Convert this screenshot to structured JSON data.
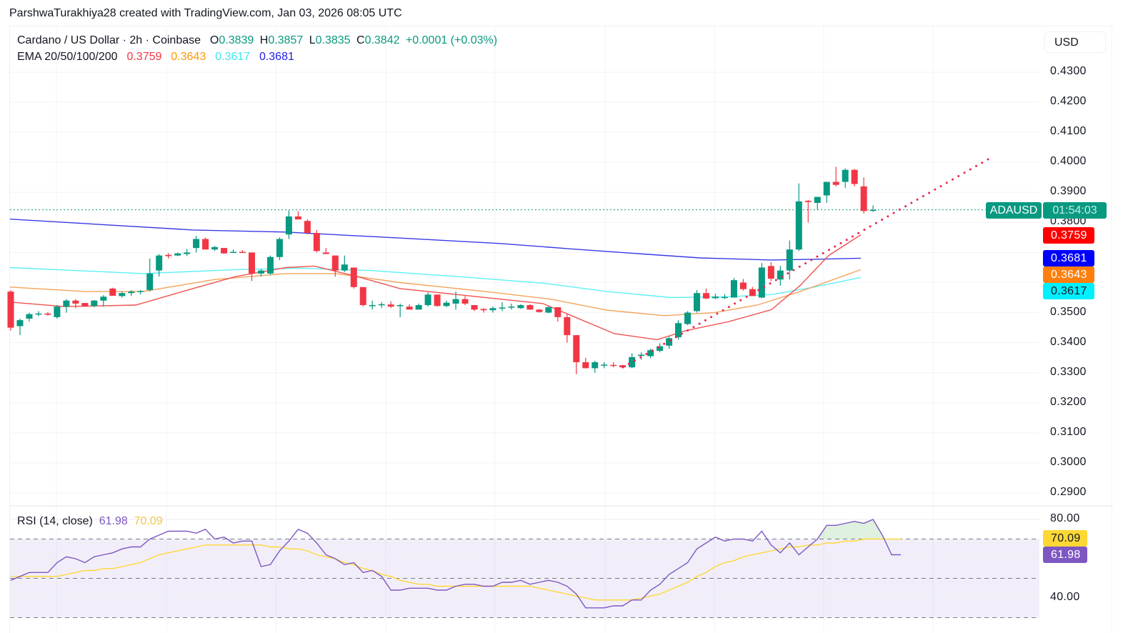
{
  "credit": "ParshwaTurakhiya28 created with TradingView.com, Jan 03, 2026 08:05 UTC",
  "header": {
    "symbol_title": "Cardano / US Dollar · 2h · Coinbase",
    "open_label": "O",
    "open": "0.3839",
    "high_label": "H",
    "high": "0.3857",
    "low_label": "L",
    "low": "0.3835",
    "close_label": "C",
    "close": "0.3842",
    "change": "+0.0001 (+0.03%)"
  },
  "ema_legend": {
    "label": "EMA 20/50/100/200",
    "ema20": "0.3759",
    "ema50": "0.3643",
    "ema100": "0.3617",
    "ema200": "0.3681"
  },
  "rsi_legend": {
    "label": "RSI (14, close)",
    "rsi": "61.98",
    "rsi_ma": "70.09"
  },
  "price_axis": {
    "currency": "USD",
    "ticks": [
      "0.4300",
      "0.4200",
      "0.4100",
      "0.4000",
      "0.3900",
      "0.3800",
      "0.3500",
      "0.3400",
      "0.3300",
      "0.3200",
      "0.3100",
      "0.3000",
      "0.2900"
    ]
  },
  "rsi_axis": {
    "ticks": [
      "80.00",
      "40.00"
    ]
  },
  "price_tags": {
    "symbol": "ADAUSD",
    "countdown": "01:54:03",
    "ema20": "0.3759",
    "ema200": "0.3681",
    "ema50": "0.3643",
    "ema100": "0.3617",
    "rsi_ma": "70.09",
    "rsi": "61.98"
  },
  "colors": {
    "up": "#089981",
    "down": "#f23645",
    "ema20": "#f23645",
    "ema50": "#ff9800",
    "ema100": "#00e5ff",
    "ema200": "#2962ff",
    "rsi": "#7e57c2",
    "rsi_ma": "#fdd835",
    "trendline": "#e8264a"
  },
  "chart_data": {
    "type": "candlestick",
    "title": "Cardano / US Dollar · 2h · Coinbase",
    "xlabel": "",
    "ylabel": "USD",
    "ylim": [
      0.285,
      0.435
    ],
    "grid": true,
    "legend_position": "top-left",
    "last_price": 0.3842,
    "ohlc_last": {
      "open": 0.3839,
      "high": 0.3857,
      "low": 0.3835,
      "close": 0.3842,
      "change": 0.0001,
      "change_pct": 0.03
    },
    "candles": [
      {
        "o": 0.357,
        "h": 0.3575,
        "l": 0.344,
        "c": 0.345
      },
      {
        "o": 0.3455,
        "h": 0.348,
        "l": 0.3425,
        "c": 0.3475
      },
      {
        "o": 0.348,
        "h": 0.35,
        "l": 0.347,
        "c": 0.3495
      },
      {
        "o": 0.3495,
        "h": 0.3505,
        "l": 0.3488,
        "c": 0.3497
      },
      {
        "o": 0.3497,
        "h": 0.3502,
        "l": 0.349,
        "c": 0.3493
      },
      {
        "o": 0.3485,
        "h": 0.3525,
        "l": 0.348,
        "c": 0.352
      },
      {
        "o": 0.352,
        "h": 0.3545,
        "l": 0.35,
        "c": 0.354
      },
      {
        "o": 0.354,
        "h": 0.3545,
        "l": 0.3515,
        "c": 0.353
      },
      {
        "o": 0.3532,
        "h": 0.3528,
        "l": 0.352,
        "c": 0.352
      },
      {
        "o": 0.3522,
        "h": 0.3542,
        "l": 0.3518,
        "c": 0.354
      },
      {
        "o": 0.354,
        "h": 0.3558,
        "l": 0.352,
        "c": 0.3553
      },
      {
        "o": 0.358,
        "h": 0.3583,
        "l": 0.3556,
        "c": 0.3556
      },
      {
        "o": 0.3555,
        "h": 0.357,
        "l": 0.355,
        "c": 0.3565
      },
      {
        "o": 0.3565,
        "h": 0.3575,
        "l": 0.3555,
        "c": 0.357
      },
      {
        "o": 0.357,
        "h": 0.3575,
        "l": 0.356,
        "c": 0.3572
      },
      {
        "o": 0.3575,
        "h": 0.368,
        "l": 0.357,
        "c": 0.363
      },
      {
        "o": 0.364,
        "h": 0.3695,
        "l": 0.362,
        "c": 0.369
      },
      {
        "o": 0.3692,
        "h": 0.3698,
        "l": 0.368,
        "c": 0.3688
      },
      {
        "o": 0.369,
        "h": 0.37,
        "l": 0.3688,
        "c": 0.3697
      },
      {
        "o": 0.3695,
        "h": 0.3712,
        "l": 0.3688,
        "c": 0.37
      },
      {
        "o": 0.3715,
        "h": 0.3755,
        "l": 0.37,
        "c": 0.3745
      },
      {
        "o": 0.3745,
        "h": 0.375,
        "l": 0.371,
        "c": 0.371
      },
      {
        "o": 0.371,
        "h": 0.3722,
        "l": 0.3705,
        "c": 0.3718
      },
      {
        "o": 0.3715,
        "h": 0.3715,
        "l": 0.3695,
        "c": 0.3697
      },
      {
        "o": 0.3702,
        "h": 0.371,
        "l": 0.37,
        "c": 0.3702
      },
      {
        "o": 0.3702,
        "h": 0.3708,
        "l": 0.37,
        "c": 0.3701
      },
      {
        "o": 0.37,
        "h": 0.37,
        "l": 0.3605,
        "c": 0.363
      },
      {
        "o": 0.363,
        "h": 0.3645,
        "l": 0.362,
        "c": 0.364
      },
      {
        "o": 0.363,
        "h": 0.369,
        "l": 0.3625,
        "c": 0.3685
      },
      {
        "o": 0.3685,
        "h": 0.375,
        "l": 0.3675,
        "c": 0.3745
      },
      {
        "o": 0.376,
        "h": 0.384,
        "l": 0.3745,
        "c": 0.382
      },
      {
        "o": 0.382,
        "h": 0.3838,
        "l": 0.381,
        "c": 0.381
      },
      {
        "o": 0.3805,
        "h": 0.381,
        "l": 0.376,
        "c": 0.3765
      },
      {
        "o": 0.3765,
        "h": 0.3775,
        "l": 0.37,
        "c": 0.3705
      },
      {
        "o": 0.37,
        "h": 0.3715,
        "l": 0.3695,
        "c": 0.3695
      },
      {
        "o": 0.369,
        "h": 0.369,
        "l": 0.362,
        "c": 0.364
      },
      {
        "o": 0.364,
        "h": 0.369,
        "l": 0.3635,
        "c": 0.366
      },
      {
        "o": 0.365,
        "h": 0.365,
        "l": 0.358,
        "c": 0.3585
      },
      {
        "o": 0.3585,
        "h": 0.3585,
        "l": 0.352,
        "c": 0.3525
      },
      {
        "o": 0.3525,
        "h": 0.354,
        "l": 0.351,
        "c": 0.3525
      },
      {
        "o": 0.3525,
        "h": 0.3535,
        "l": 0.3515,
        "c": 0.3528
      },
      {
        "o": 0.3527,
        "h": 0.3538,
        "l": 0.3515,
        "c": 0.352
      },
      {
        "o": 0.3525,
        "h": 0.353,
        "l": 0.3485,
        "c": 0.3525
      },
      {
        "o": 0.352,
        "h": 0.3528,
        "l": 0.351,
        "c": 0.351
      },
      {
        "o": 0.351,
        "h": 0.353,
        "l": 0.351,
        "c": 0.3525
      },
      {
        "o": 0.3525,
        "h": 0.3568,
        "l": 0.352,
        "c": 0.356
      },
      {
        "o": 0.356,
        "h": 0.356,
        "l": 0.352,
        "c": 0.3522
      },
      {
        "o": 0.3522,
        "h": 0.354,
        "l": 0.3518,
        "c": 0.3533
      },
      {
        "o": 0.353,
        "h": 0.357,
        "l": 0.351,
        "c": 0.3545
      },
      {
        "o": 0.3545,
        "h": 0.3555,
        "l": 0.3525,
        "c": 0.353
      },
      {
        "o": 0.3525,
        "h": 0.3525,
        "l": 0.3505,
        "c": 0.351
      },
      {
        "o": 0.3512,
        "h": 0.3515,
        "l": 0.35,
        "c": 0.3508
      },
      {
        "o": 0.3508,
        "h": 0.352,
        "l": 0.35,
        "c": 0.3515
      },
      {
        "o": 0.3515,
        "h": 0.3535,
        "l": 0.3505,
        "c": 0.3517
      },
      {
        "o": 0.3517,
        "h": 0.353,
        "l": 0.351,
        "c": 0.352
      },
      {
        "o": 0.3515,
        "h": 0.3528,
        "l": 0.3512,
        "c": 0.3525
      },
      {
        "o": 0.3525,
        "h": 0.3528,
        "l": 0.351,
        "c": 0.351
      },
      {
        "o": 0.351,
        "h": 0.3512,
        "l": 0.35,
        "c": 0.3502
      },
      {
        "o": 0.35,
        "h": 0.352,
        "l": 0.3498,
        "c": 0.3518
      },
      {
        "o": 0.3518,
        "h": 0.3518,
        "l": 0.347,
        "c": 0.3485
      },
      {
        "o": 0.3485,
        "h": 0.3495,
        "l": 0.34,
        "c": 0.3425
      },
      {
        "o": 0.3425,
        "h": 0.3425,
        "l": 0.3295,
        "c": 0.3335
      },
      {
        "o": 0.3335,
        "h": 0.335,
        "l": 0.3315,
        "c": 0.3315
      },
      {
        "o": 0.3315,
        "h": 0.334,
        "l": 0.33,
        "c": 0.3335
      },
      {
        "o": 0.3325,
        "h": 0.3335,
        "l": 0.3315,
        "c": 0.3327
      },
      {
        "o": 0.3326,
        "h": 0.3335,
        "l": 0.3318,
        "c": 0.3325
      },
      {
        "o": 0.3325,
        "h": 0.3326,
        "l": 0.3315,
        "c": 0.3318
      },
      {
        "o": 0.3318,
        "h": 0.3365,
        "l": 0.3315,
        "c": 0.3352
      },
      {
        "o": 0.3356,
        "h": 0.3368,
        "l": 0.3343,
        "c": 0.336
      },
      {
        "o": 0.3355,
        "h": 0.338,
        "l": 0.3348,
        "c": 0.3375
      },
      {
        "o": 0.3373,
        "h": 0.3398,
        "l": 0.3368,
        "c": 0.3388
      },
      {
        "o": 0.339,
        "h": 0.342,
        "l": 0.338,
        "c": 0.3415
      },
      {
        "o": 0.3418,
        "h": 0.3475,
        "l": 0.341,
        "c": 0.3465
      },
      {
        "o": 0.3462,
        "h": 0.3505,
        "l": 0.3458,
        "c": 0.35
      },
      {
        "o": 0.3505,
        "h": 0.3575,
        "l": 0.35,
        "c": 0.3565
      },
      {
        "o": 0.3565,
        "h": 0.358,
        "l": 0.3545,
        "c": 0.3547
      },
      {
        "o": 0.3548,
        "h": 0.3563,
        "l": 0.3545,
        "c": 0.3553
      },
      {
        "o": 0.3552,
        "h": 0.3562,
        "l": 0.3545,
        "c": 0.3552
      },
      {
        "o": 0.355,
        "h": 0.3615,
        "l": 0.355,
        "c": 0.3608
      },
      {
        "o": 0.36,
        "h": 0.3612,
        "l": 0.3573,
        "c": 0.3578
      },
      {
        "o": 0.3578,
        "h": 0.3585,
        "l": 0.3555,
        "c": 0.3555
      },
      {
        "o": 0.355,
        "h": 0.3665,
        "l": 0.3548,
        "c": 0.365
      },
      {
        "o": 0.3655,
        "h": 0.3668,
        "l": 0.3605,
        "c": 0.3613
      },
      {
        "o": 0.361,
        "h": 0.3655,
        "l": 0.359,
        "c": 0.364
      },
      {
        "o": 0.364,
        "h": 0.374,
        "l": 0.361,
        "c": 0.371
      },
      {
        "o": 0.371,
        "h": 0.393,
        "l": 0.3705,
        "c": 0.387
      },
      {
        "o": 0.3872,
        "h": 0.3875,
        "l": 0.38,
        "c": 0.3868
      },
      {
        "o": 0.3865,
        "h": 0.3885,
        "l": 0.3842,
        "c": 0.3885
      },
      {
        "o": 0.389,
        "h": 0.392,
        "l": 0.3865,
        "c": 0.3935
      },
      {
        "o": 0.3935,
        "h": 0.3985,
        "l": 0.392,
        "c": 0.3925
      },
      {
        "o": 0.3935,
        "h": 0.398,
        "l": 0.3915,
        "c": 0.3975
      },
      {
        "o": 0.3975,
        "h": 0.3978,
        "l": 0.392,
        "c": 0.3928
      },
      {
        "o": 0.392,
        "h": 0.395,
        "l": 0.383,
        "c": 0.3838
      },
      {
        "o": 0.3839,
        "h": 0.3857,
        "l": 0.3835,
        "c": 0.3842
      }
    ],
    "ema_series": [
      {
        "name": "EMA 20",
        "value": 0.3759,
        "color": "#f23645"
      },
      {
        "name": "EMA 50",
        "value": 0.3643,
        "color": "#ff9800"
      },
      {
        "name": "EMA 100",
        "value": 0.3617,
        "color": "#00e5ff"
      },
      {
        "name": "EMA 200",
        "value": 0.3681,
        "color": "#2962ff"
      }
    ],
    "annotations": [
      {
        "type": "dotted-trendline",
        "from_price": 0.3318,
        "to_price": 0.401,
        "color": "#e8264a"
      },
      {
        "type": "last-price-line",
        "price": 0.3842,
        "color": "#089981"
      }
    ],
    "rsi": {
      "title": "RSI (14, close)",
      "ylim": [
        37,
        82
      ],
      "bands": [
        70,
        50,
        30
      ],
      "ticks": [
        80,
        40
      ],
      "rsi_last": 61.98,
      "rsi_ma_last": 70.09,
      "rsi_values": [
        49,
        51,
        53,
        53,
        53,
        58,
        61,
        60,
        58,
        61,
        62,
        63,
        65,
        66,
        66,
        70,
        72,
        74,
        74,
        74,
        73,
        75,
        70,
        71,
        68,
        69,
        69,
        56,
        57,
        64,
        69,
        75,
        73,
        68,
        62,
        60,
        57,
        58,
        53,
        54,
        51,
        44,
        44,
        45,
        45,
        45,
        44,
        44,
        46,
        47,
        47,
        46,
        46,
        48,
        48,
        49,
        47,
        48,
        49,
        48,
        46,
        42,
        35,
        35,
        35,
        36,
        36,
        39,
        39,
        44,
        47,
        52,
        55,
        58,
        65,
        68,
        71,
        69,
        70,
        70,
        69,
        74,
        67,
        63,
        68,
        62,
        66,
        70,
        77,
        77,
        78,
        79,
        78,
        80,
        72,
        62,
        62
      ],
      "rsi_ma_values": [
        51,
        51,
        51,
        51,
        51,
        51,
        52,
        53,
        54,
        54,
        55,
        55,
        56,
        57,
        58,
        60,
        62,
        63,
        64,
        65,
        66,
        67,
        67,
        67,
        67,
        67,
        67,
        67,
        66,
        66,
        65,
        65,
        64,
        62,
        61,
        60,
        58,
        57,
        55,
        54,
        52,
        51,
        49,
        48,
        47,
        47,
        46,
        46,
        46,
        46,
        46,
        46,
        46,
        46,
        46,
        46,
        46,
        45,
        44,
        43,
        42,
        41,
        40,
        39,
        39,
        39,
        39,
        39,
        40,
        41,
        42,
        44,
        46,
        48,
        51,
        53,
        56,
        58,
        59,
        61,
        62,
        63,
        64,
        65,
        66,
        66,
        67,
        67,
        68,
        68,
        69,
        69,
        70,
        70,
        70,
        70,
        70
      ]
    }
  }
}
